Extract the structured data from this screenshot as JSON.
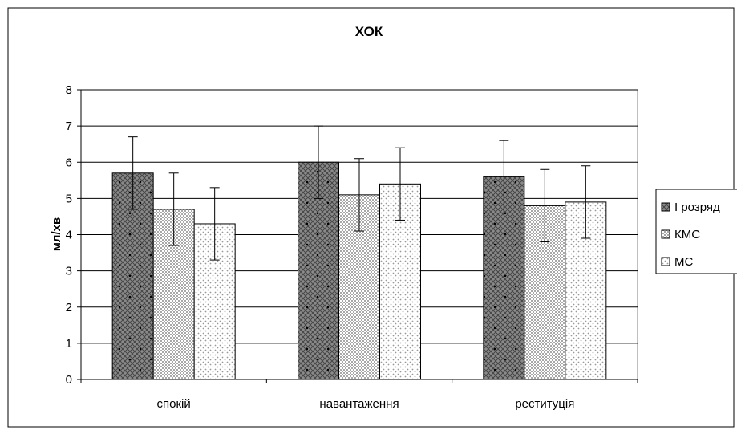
{
  "chart_data": {
    "type": "bar",
    "title": "ХОК",
    "xlabel": "",
    "ylabel": "мл/хв",
    "ylim": [
      0,
      8
    ],
    "yticks": [
      0,
      1,
      2,
      3,
      4,
      5,
      6,
      7,
      8
    ],
    "grid": true,
    "legend_position": "right",
    "categories": [
      "спокій",
      "навантаження",
      "реституція"
    ],
    "series": [
      {
        "name": "І розряд",
        "values": [
          5.7,
          6.0,
          5.6
        ],
        "error": [
          1.0,
          1.0,
          1.0
        ],
        "pattern": "dark-crosshatch-dots"
      },
      {
        "name": "КМС",
        "values": [
          4.7,
          5.1,
          4.8
        ],
        "error": [
          1.0,
          1.0,
          1.0
        ],
        "pattern": "light-dense-dots"
      },
      {
        "name": "МС",
        "values": [
          4.3,
          5.4,
          4.9
        ],
        "error": [
          1.0,
          1.0,
          1.0
        ],
        "pattern": "white-sparse-dots"
      }
    ]
  }
}
